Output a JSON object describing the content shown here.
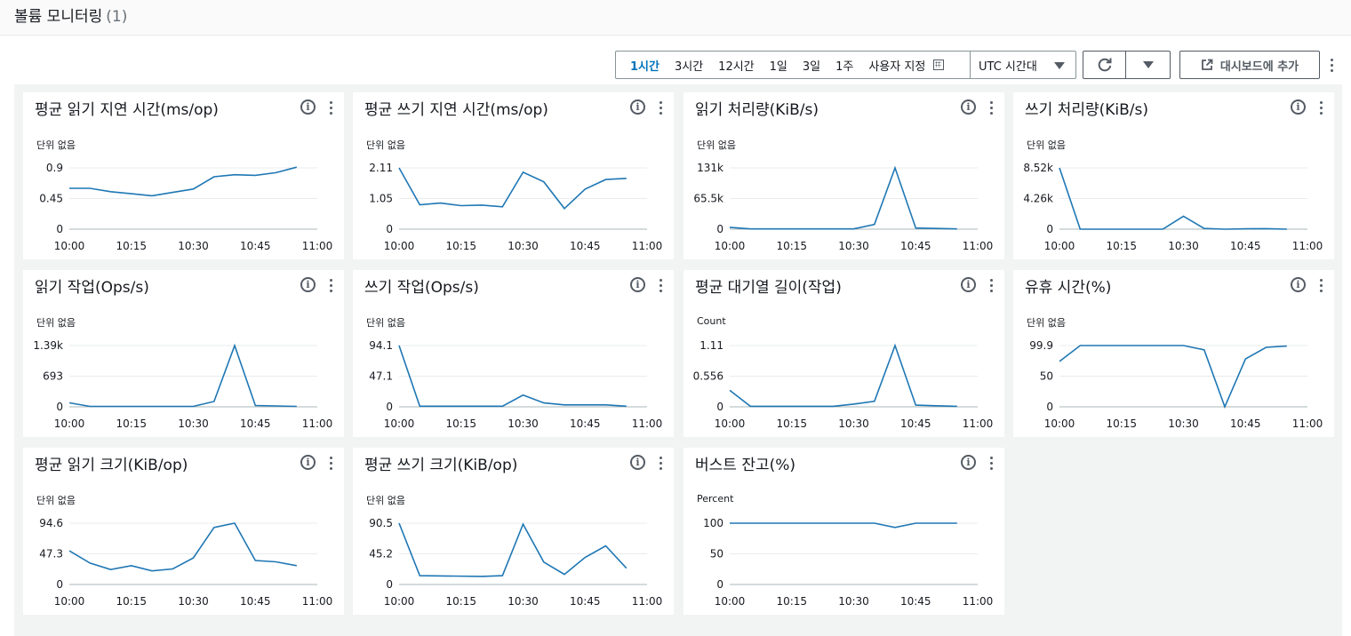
{
  "header": {
    "title": "볼륨 모니터링",
    "count": "(1)"
  },
  "toolbar": {
    "ranges": [
      "1시간",
      "3시간",
      "12시간",
      "1일",
      "3일",
      "1주",
      "사용자 지정"
    ],
    "active_range": "1시간",
    "timezone": "UTC 시간대",
    "add_dashboard_label": "대시보드에 추가"
  },
  "colors": {
    "line": "#1f77b4",
    "accent": "#0073bb"
  },
  "panels": [
    {
      "title": "평균 읽기 지연 시간(ms/op)",
      "unit": "단위 없음"
    },
    {
      "title": "평균 쓰기 지연 시간(ms/op)",
      "unit": "단위 없음"
    },
    {
      "title": "읽기 처리량(KiB/s)",
      "unit": "단위 없음"
    },
    {
      "title": "쓰기 처리량(KiB/s)",
      "unit": "단위 없음"
    },
    {
      "title": "읽기 작업(Ops/s)",
      "unit": "단위 없음"
    },
    {
      "title": "쓰기 작업(Ops/s)",
      "unit": "단위 없음"
    },
    {
      "title": "평균 대기열 길이(작업)",
      "unit": "Count"
    },
    {
      "title": "유휴 시간(%)",
      "unit": "단위 없음"
    },
    {
      "title": "평균 읽기 크기(KiB/op)",
      "unit": "단위 없음"
    },
    {
      "title": "평균 쓰기 크기(KiB/op)",
      "unit": "단위 없음"
    },
    {
      "title": "버스트 잔고(%)",
      "unit": "Percent"
    }
  ],
  "chart_data": [
    {
      "type": "line",
      "title": "평균 읽기 지연 시간(ms/op)",
      "ylabel": "단위 없음",
      "x": [
        "10:00",
        "10:05",
        "10:10",
        "10:15",
        "10:20",
        "10:25",
        "10:30",
        "10:35",
        "10:40",
        "10:45",
        "10:50",
        "10:55"
      ],
      "xticks": [
        "10:00",
        "10:15",
        "10:30",
        "10:45",
        "11:00"
      ],
      "yticks": [
        "0",
        "0.45",
        "0.9"
      ],
      "ylim": [
        0,
        0.9
      ],
      "values": [
        0.6,
        0.6,
        0.55,
        0.52,
        0.49,
        0.54,
        0.59,
        0.77,
        0.8,
        0.79,
        0.83,
        0.91
      ]
    },
    {
      "type": "line",
      "title": "평균 쓰기 지연 시간(ms/op)",
      "ylabel": "단위 없음",
      "x": [
        "10:00",
        "10:05",
        "10:10",
        "10:15",
        "10:20",
        "10:25",
        "10:30",
        "10:35",
        "10:40",
        "10:45",
        "10:50",
        "10:55"
      ],
      "xticks": [
        "10:00",
        "10:15",
        "10:30",
        "10:45",
        "11:00"
      ],
      "yticks": [
        "0",
        "1.05",
        "2.11"
      ],
      "ylim": [
        0,
        2.11
      ],
      "values": [
        2.11,
        0.84,
        0.9,
        0.81,
        0.83,
        0.77,
        1.96,
        1.63,
        0.71,
        1.38,
        1.71,
        1.75
      ]
    },
    {
      "type": "line",
      "title": "읽기 처리량(KiB/s)",
      "ylabel": "단위 없음",
      "x": [
        "10:00",
        "10:05",
        "10:10",
        "10:15",
        "10:20",
        "10:25",
        "10:30",
        "10:35",
        "10:40",
        "10:45",
        "10:50",
        "10:55"
      ],
      "xticks": [
        "10:00",
        "10:15",
        "10:30",
        "10:45",
        "11:00"
      ],
      "yticks": [
        "0",
        "65.5k",
        "131k"
      ],
      "ylim": [
        0,
        131000
      ],
      "values": [
        4000,
        500,
        500,
        500,
        500,
        500,
        500,
        10000,
        131000,
        2500,
        1500,
        500
      ]
    },
    {
      "type": "line",
      "title": "쓰기 처리량(KiB/s)",
      "ylabel": "단위 없음",
      "x": [
        "10:00",
        "10:05",
        "10:10",
        "10:15",
        "10:20",
        "10:25",
        "10:30",
        "10:35",
        "10:40",
        "10:45",
        "10:50",
        "10:55"
      ],
      "xticks": [
        "10:00",
        "10:15",
        "10:30",
        "10:45",
        "11:00"
      ],
      "yticks": [
        "0",
        "4.26k",
        "8.52k"
      ],
      "ylim": [
        0,
        8520
      ],
      "values": [
        8520,
        0,
        0,
        0,
        0,
        0,
        1800,
        100,
        0,
        50,
        80,
        0
      ]
    },
    {
      "type": "line",
      "title": "읽기 작업(Ops/s)",
      "ylabel": "단위 없음",
      "x": [
        "10:00",
        "10:05",
        "10:10",
        "10:15",
        "10:20",
        "10:25",
        "10:30",
        "10:35",
        "10:40",
        "10:45",
        "10:50",
        "10:55"
      ],
      "xticks": [
        "10:00",
        "10:15",
        "10:30",
        "10:45",
        "11:00"
      ],
      "yticks": [
        "0",
        "693",
        "1.39k"
      ],
      "ylim": [
        0,
        1390
      ],
      "values": [
        90,
        10,
        10,
        10,
        10,
        10,
        10,
        120,
        1390,
        30,
        20,
        10
      ]
    },
    {
      "type": "line",
      "title": "쓰기 작업(Ops/s)",
      "ylabel": "단위 없음",
      "x": [
        "10:00",
        "10:05",
        "10:10",
        "10:15",
        "10:20",
        "10:25",
        "10:30",
        "10:35",
        "10:40",
        "10:45",
        "10:50",
        "10:55"
      ],
      "xticks": [
        "10:00",
        "10:15",
        "10:30",
        "10:45",
        "11:00"
      ],
      "yticks": [
        "0",
        "47.1",
        "94.1"
      ],
      "ylim": [
        0,
        94.1
      ],
      "values": [
        94.1,
        1,
        1,
        1,
        1,
        1,
        18,
        6,
        3,
        3,
        3,
        1
      ]
    },
    {
      "type": "line",
      "title": "평균 대기열 길이(작업)",
      "ylabel": "Count",
      "x": [
        "10:00",
        "10:05",
        "10:10",
        "10:15",
        "10:20",
        "10:25",
        "10:30",
        "10:35",
        "10:40",
        "10:45",
        "10:50",
        "10:55"
      ],
      "xticks": [
        "10:00",
        "10:15",
        "10:30",
        "10:45",
        "11:00"
      ],
      "yticks": [
        "0",
        "0.556",
        "1.11"
      ],
      "ylim": [
        0,
        1.11
      ],
      "values": [
        0.3,
        0.01,
        0.01,
        0.01,
        0.01,
        0.01,
        0.05,
        0.1,
        1.11,
        0.03,
        0.02,
        0.01
      ]
    },
    {
      "type": "line",
      "title": "유휴 시간(%)",
      "ylabel": "단위 없음",
      "x": [
        "10:00",
        "10:05",
        "10:10",
        "10:15",
        "10:20",
        "10:25",
        "10:30",
        "10:35",
        "10:40",
        "10:45",
        "10:50",
        "10:55"
      ],
      "xticks": [
        "10:00",
        "10:15",
        "10:30",
        "10:45",
        "11:00"
      ],
      "yticks": [
        "0",
        "50",
        "99.9"
      ],
      "ylim": [
        0,
        99.9
      ],
      "values": [
        74,
        99.9,
        99.9,
        99.9,
        99.9,
        99.9,
        99.9,
        93,
        0,
        78,
        97,
        99
      ]
    },
    {
      "type": "line",
      "title": "평균 읽기 크기(KiB/op)",
      "ylabel": "단위 없음",
      "x": [
        "10:00",
        "10:05",
        "10:10",
        "10:15",
        "10:20",
        "10:25",
        "10:30",
        "10:35",
        "10:40",
        "10:45",
        "10:50",
        "10:55"
      ],
      "xticks": [
        "10:00",
        "10:15",
        "10:30",
        "10:45",
        "11:00"
      ],
      "yticks": [
        "0",
        "47.3",
        "94.6"
      ],
      "ylim": [
        0,
        94.6
      ],
      "values": [
        52,
        33,
        23,
        29,
        21,
        24,
        41,
        88,
        94.6,
        37,
        35,
        29
      ]
    },
    {
      "type": "line",
      "title": "평균 쓰기 크기(KiB/op)",
      "ylabel": "단위 없음",
      "x": [
        "10:00",
        "10:05",
        "10:10",
        "10:15",
        "10:20",
        "10:25",
        "10:30",
        "10:35",
        "10:40",
        "10:45",
        "10:50",
        "10:55"
      ],
      "xticks": [
        "10:00",
        "10:15",
        "10:30",
        "10:45",
        "11:00"
      ],
      "yticks": [
        "0",
        "45.2",
        "90.5"
      ],
      "ylim": [
        0,
        90.5
      ],
      "values": [
        90.5,
        13,
        null,
        null,
        12,
        13,
        89,
        33,
        15,
        40,
        57,
        24
      ]
    },
    {
      "type": "line",
      "title": "버스트 잔고(%)",
      "ylabel": "Percent",
      "x": [
        "10:00",
        "10:05",
        "10:10",
        "10:15",
        "10:20",
        "10:25",
        "10:30",
        "10:35",
        "10:40",
        "10:45",
        "10:50",
        "10:55"
      ],
      "xticks": [
        "10:00",
        "10:15",
        "10:30",
        "10:45",
        "11:00"
      ],
      "yticks": [
        "0",
        "50",
        "100"
      ],
      "ylim": [
        0,
        100
      ],
      "values": [
        100,
        100,
        100,
        100,
        100,
        100,
        100,
        100,
        93,
        100,
        100,
        100
      ]
    }
  ]
}
